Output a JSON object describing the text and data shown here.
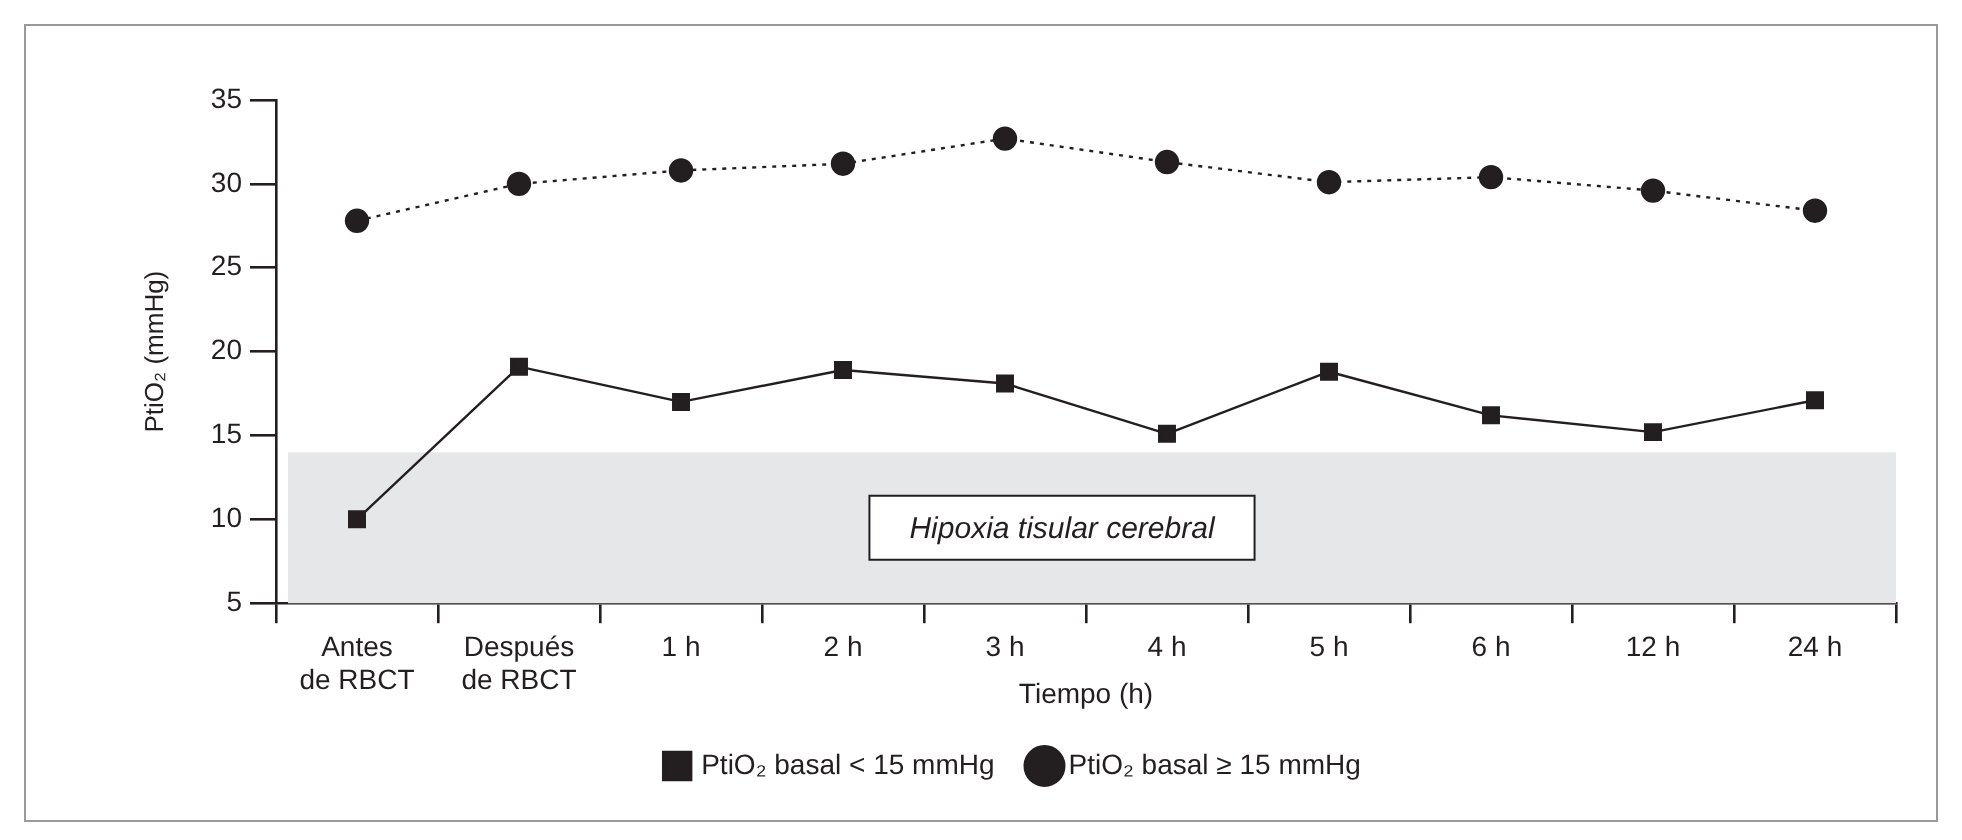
{
  "chart_data": {
    "type": "line",
    "xlabel": "Tiempo (h)",
    "ylabel": "PtiO₂ (mmHg)",
    "categories": [
      "Antes de RBCT",
      "Después de RBCT",
      "1 h",
      "2 h",
      "3 h",
      "4 h",
      "5 h",
      "6 h",
      "12 h",
      "24 h"
    ],
    "ylim": [
      5,
      35
    ],
    "yticks": [
      5,
      10,
      15,
      20,
      25,
      30,
      35
    ],
    "series": [
      {
        "name": "PtiO₂ basal < 15 mmHg",
        "color": "#231f20",
        "marker": "square",
        "line_style": "solid",
        "values": [
          10,
          19.1,
          17,
          18.9,
          18.1,
          15.1,
          18.8,
          16.2,
          15.2,
          17.1
        ]
      },
      {
        "name": "PtiO₂ basal ≥ 15 mmHg",
        "color": "#231f20",
        "marker": "circle",
        "line_style": "dotted",
        "values": [
          27.8,
          30,
          30.8,
          31.2,
          32.7,
          31.3,
          30.1,
          30.4,
          29.6,
          28.4
        ]
      }
    ],
    "bands": [
      {
        "axis": "y",
        "from": 5,
        "to": 14,
        "label": "Hipoxia tisular cerebral",
        "color": "#e6e7e9"
      }
    ],
    "grid": false,
    "legend": "bottom"
  }
}
